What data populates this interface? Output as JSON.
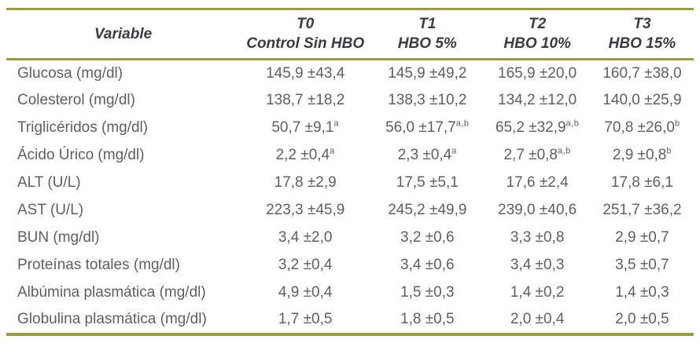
{
  "colors": {
    "rule": "#9c9a44",
    "header_text": "#3a3b43",
    "body_text": "#5d5f66"
  },
  "table": {
    "columns": [
      {
        "line1": "Variable",
        "line2": ""
      },
      {
        "line1": "T0",
        "line2": "Control Sin HBO"
      },
      {
        "line1": "T1",
        "line2": "HBO 5%"
      },
      {
        "line1": "T2",
        "line2": "HBO 10%"
      },
      {
        "line1": "T3",
        "line2": "HBO 15%"
      }
    ],
    "rows": [
      {
        "variable": "Glucosa (mg/dl)",
        "cells": [
          {
            "value": "145,9 ±43,4",
            "sup": ""
          },
          {
            "value": "145,9 ±49,2",
            "sup": ""
          },
          {
            "value": "165,9 ±20,0",
            "sup": ""
          },
          {
            "value": "160,7 ±38,0",
            "sup": ""
          }
        ]
      },
      {
        "variable": "Colesterol (mg/dl)",
        "cells": [
          {
            "value": "138,7 ±18,2",
            "sup": ""
          },
          {
            "value": "138,3 ±10,2",
            "sup": ""
          },
          {
            "value": "134,2 ±12,0",
            "sup": ""
          },
          {
            "value": "140,0 ±25,9",
            "sup": ""
          }
        ]
      },
      {
        "variable": "Triglicéridos (mg/dl)",
        "cells": [
          {
            "value": "50,7 ±9,1",
            "sup": "a"
          },
          {
            "value": "56,0 ±17,7",
            "sup": "a,b"
          },
          {
            "value": "65,2 ±32,9",
            "sup": "a,b"
          },
          {
            "value": "70,8 ±26,0",
            "sup": "b"
          }
        ]
      },
      {
        "variable": "Ácido Úrico (mg/dl)",
        "cells": [
          {
            "value": "2,2 ±0,4",
            "sup": "a"
          },
          {
            "value": "2,3 ±0,4",
            "sup": "a"
          },
          {
            "value": "2,7 ±0,8",
            "sup": "a,b"
          },
          {
            "value": "2,9 ±0,8",
            "sup": "b"
          }
        ]
      },
      {
        "variable": "ALT (U/L)",
        "cells": [
          {
            "value": "17,8 ±2,9",
            "sup": ""
          },
          {
            "value": "17,5 ±5,1",
            "sup": ""
          },
          {
            "value": "17,6 ±2,4",
            "sup": ""
          },
          {
            "value": "17,8 ±6,1",
            "sup": ""
          }
        ]
      },
      {
        "variable": "AST (U/L)",
        "cells": [
          {
            "value": "223,3 ±45,9",
            "sup": ""
          },
          {
            "value": "245,2 ±49,9",
            "sup": ""
          },
          {
            "value": "239,0 ±40,6",
            "sup": ""
          },
          {
            "value": "251,7 ±36,2",
            "sup": ""
          }
        ]
      },
      {
        "variable": "BUN (mg/dl)",
        "cells": [
          {
            "value": "3,4 ±2,0",
            "sup": ""
          },
          {
            "value": "3,2 ±0,6",
            "sup": ""
          },
          {
            "value": "3,3 ±0,8",
            "sup": ""
          },
          {
            "value": "2,9 ±0,7",
            "sup": ""
          }
        ]
      },
      {
        "variable": "Proteínas totales (mg/dl)",
        "cells": [
          {
            "value": "3,2 ±0,4",
            "sup": ""
          },
          {
            "value": "3,4 ±0,6",
            "sup": ""
          },
          {
            "value": "3,4 ±0,3",
            "sup": ""
          },
          {
            "value": "3,5 ±0,7",
            "sup": ""
          }
        ]
      },
      {
        "variable": "Albúmina plasmática (mg/dl)",
        "cells": [
          {
            "value": "4,9 ±0,4",
            "sup": ""
          },
          {
            "value": "1,5 ±0,3",
            "sup": ""
          },
          {
            "value": "1,4 ±0,2",
            "sup": ""
          },
          {
            "value": "1,4 ±0,3",
            "sup": ""
          }
        ]
      },
      {
        "variable": "Globulina plasmática (mg/dl)",
        "cells": [
          {
            "value": "1,7 ±0,5",
            "sup": ""
          },
          {
            "value": "1,8 ±0,5",
            "sup": ""
          },
          {
            "value": "2,0 ±0,4",
            "sup": ""
          },
          {
            "value": "2,0 ±0,5",
            "sup": ""
          }
        ]
      }
    ]
  }
}
